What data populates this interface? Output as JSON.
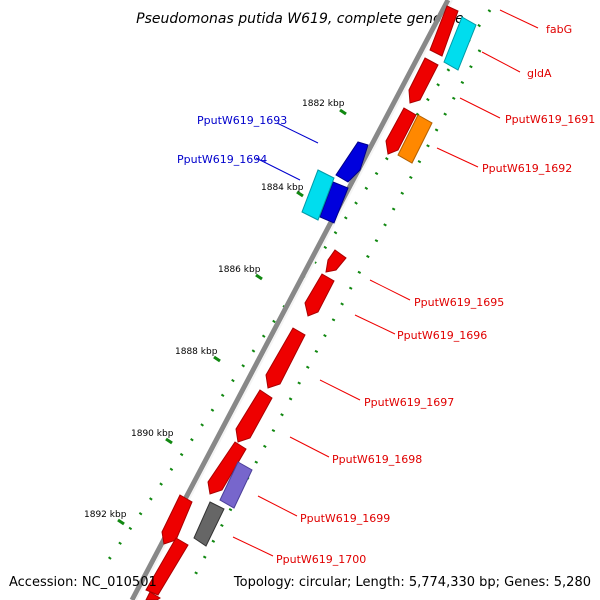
{
  "title": "Pseudomonas putida W619, complete genome",
  "accession": "Accession: NC_010501",
  "summary": "Topology: circular; Length: 5,774,330 bp; Genes: 5,280",
  "kbp_labels": [
    "1882 kbp",
    "1884 kbp",
    "1886 kbp",
    "1888 kbp",
    "1890 kbp",
    "1892 kbp"
  ],
  "colors": {
    "forward": "#0000dd",
    "forward_cyan": "#00ddee",
    "reverse_red": "#ee0000",
    "reverse_orange": "#ff8800",
    "rna_purple": "#7766cc",
    "rna_gray": "#666666",
    "backbone": "#888888",
    "gc_dots": "#118811"
  },
  "genes": [
    {
      "name": "fabG",
      "color": "#ee0000"
    },
    {
      "name": "gldA",
      "color": "#ee0000"
    },
    {
      "name": "PputW619_1691",
      "color": "#ee0000"
    },
    {
      "name": "PputW619_1692",
      "color": "#ee0000"
    },
    {
      "name": "PputW619_1693",
      "color": "#0000cc"
    },
    {
      "name": "PputW619_1694",
      "color": "#0000cc"
    },
    {
      "name": "PputW619_1695",
      "color": "#ee0000"
    },
    {
      "name": "PputW619_1696",
      "color": "#ee0000"
    },
    {
      "name": "PputW619_1697",
      "color": "#ee0000"
    },
    {
      "name": "PputW619_1698",
      "color": "#ee0000"
    },
    {
      "name": "PputW619_1699",
      "color": "#ee0000"
    },
    {
      "name": "PputW619_1700",
      "color": "#ee0000"
    }
  ]
}
